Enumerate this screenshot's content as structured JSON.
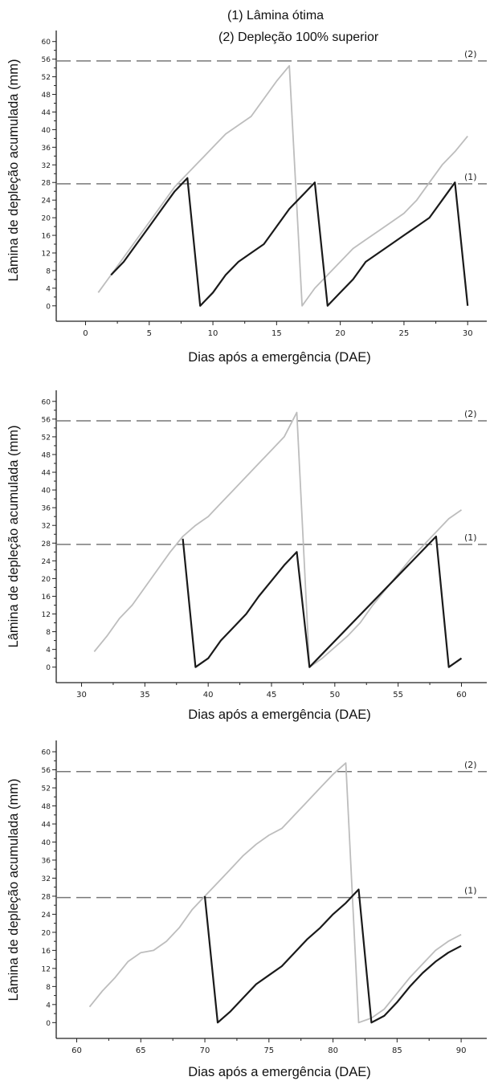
{
  "legend": {
    "line1": "(1) Lâmina ótima",
    "line2": "(2) Depleção 100% superior"
  },
  "colors": {
    "dark_series": "#1a1a1a",
    "light_series": "#bdbdbd",
    "reference_lines": "#777777"
  },
  "chart_data": [
    {
      "type": "line",
      "xlabel": "Dias após a emergência (DAE)",
      "ylabel": "Lâmina de depleção acumulada (mm)",
      "xlim": [
        -2.3,
        31.5
      ],
      "ylim": [
        -3.5,
        62.5
      ],
      "xticks": [
        0,
        5,
        10,
        15,
        20,
        25,
        30
      ],
      "yticks": [
        0,
        4,
        8,
        12,
        16,
        20,
        24,
        28,
        32,
        36,
        40,
        44,
        48,
        52,
        56,
        60
      ],
      "reference_lines": [
        {
          "label": "(1)",
          "y": 27.7
        },
        {
          "label": "(2)",
          "y": 55.6
        }
      ],
      "series": [
        {
          "style": "light",
          "x": [
            1,
            2,
            3,
            4,
            5,
            6,
            7,
            8,
            9,
            10,
            11,
            12,
            13,
            14,
            15,
            16,
            17,
            18,
            19,
            20,
            21,
            22,
            23,
            24,
            25,
            26,
            27,
            28,
            29,
            30
          ],
          "y": [
            3,
            7,
            11,
            15,
            19,
            23,
            27,
            30,
            33,
            36,
            39,
            41,
            43,
            47,
            51,
            54.5,
            0,
            4,
            7,
            10,
            13,
            15,
            17,
            19,
            21,
            24,
            28,
            32,
            35,
            38.5
          ]
        },
        {
          "style": "dark",
          "x": [
            2,
            3,
            4,
            5,
            6,
            7,
            8,
            9,
            10,
            11,
            12,
            13,
            14,
            15,
            16,
            17,
            18,
            19,
            20,
            21,
            22,
            23,
            24,
            25,
            26,
            27,
            28,
            29,
            30
          ],
          "y": [
            7,
            10,
            14,
            18,
            22,
            26,
            29,
            0,
            3,
            7,
            10,
            12,
            14,
            18,
            22,
            25,
            28,
            0,
            3,
            6,
            10,
            12,
            14,
            16,
            18,
            20,
            24,
            28,
            0
          ]
        }
      ]
    },
    {
      "type": "line",
      "xlabel": "Dias após a emergência (DAE)",
      "ylabel": "Lâmina de depleção acumulada (mm)",
      "xlim": [
        28,
        62
      ],
      "ylim": [
        -3.5,
        62.5
      ],
      "xticks": [
        30,
        35,
        40,
        45,
        50,
        55,
        60
      ],
      "yticks": [
        0,
        4,
        8,
        12,
        16,
        20,
        24,
        28,
        32,
        36,
        40,
        44,
        48,
        52,
        56,
        60
      ],
      "reference_lines": [
        {
          "label": "(1)",
          "y": 27.7
        },
        {
          "label": "(2)",
          "y": 55.6
        }
      ],
      "series": [
        {
          "style": "light",
          "x": [
            31,
            32,
            33,
            34,
            35,
            36,
            37,
            38,
            39,
            40,
            41,
            42,
            43,
            44,
            45,
            46,
            47,
            48,
            49,
            50,
            51,
            52,
            53,
            54,
            55,
            56,
            57,
            58,
            59,
            60
          ],
          "y": [
            3.5,
            7,
            11,
            14,
            18,
            22,
            26,
            29.5,
            32,
            34,
            37,
            40,
            43,
            46,
            49,
            52,
            57.5,
            0,
            2,
            4.5,
            7,
            10,
            14,
            17.5,
            21,
            24.5,
            27.5,
            30.5,
            33.5,
            35.5
          ]
        },
        {
          "style": "dark",
          "x": [
            38,
            39,
            40,
            41,
            42,
            43,
            44,
            45,
            46,
            47,
            48,
            58,
            59,
            60
          ],
          "y": [
            29,
            0,
            2,
            6,
            9,
            12,
            16,
            19.5,
            23,
            26,
            0,
            29.5,
            0,
            2
          ]
        }
      ]
    },
    {
      "type": "line",
      "xlabel": "Dias após a emergência (DAE)",
      "ylabel": "Lâmina de depleção acumulada (mm)",
      "xlim": [
        58.4,
        92
      ],
      "ylim": [
        -3.5,
        62.5
      ],
      "xticks": [
        60,
        65,
        70,
        75,
        80,
        85,
        90
      ],
      "yticks": [
        0,
        4,
        8,
        12,
        16,
        20,
        24,
        28,
        32,
        36,
        40,
        44,
        48,
        52,
        56,
        60
      ],
      "reference_lines": [
        {
          "label": "(1)",
          "y": 27.7
        },
        {
          "label": "(2)",
          "y": 55.6
        }
      ],
      "series": [
        {
          "style": "light",
          "x": [
            61,
            62,
            63,
            64,
            65,
            66,
            67,
            68,
            69,
            70,
            71,
            72,
            73,
            74,
            75,
            76,
            77,
            78,
            79,
            80,
            81,
            82,
            83,
            84,
            85,
            86,
            87,
            88,
            89,
            90
          ],
          "y": [
            3.5,
            7,
            10,
            13.5,
            15.5,
            16,
            18,
            21,
            25,
            28,
            31,
            34,
            37,
            39.5,
            41.5,
            43,
            46,
            49,
            52,
            55,
            57.5,
            0,
            1,
            3,
            6.5,
            10,
            13,
            16,
            18,
            19.5
          ]
        },
        {
          "style": "dark",
          "x": [
            70,
            71,
            72,
            73,
            74,
            75,
            76,
            77,
            78,
            79,
            80,
            81,
            82,
            83,
            84,
            85,
            86,
            87,
            88,
            89,
            90
          ],
          "y": [
            28,
            0,
            2.5,
            5.5,
            8.5,
            10.5,
            12.5,
            15.5,
            18.5,
            21,
            24,
            26.5,
            29.5,
            0,
            1.5,
            4.5,
            8,
            11,
            13.5,
            15.5,
            17
          ]
        }
      ]
    }
  ]
}
